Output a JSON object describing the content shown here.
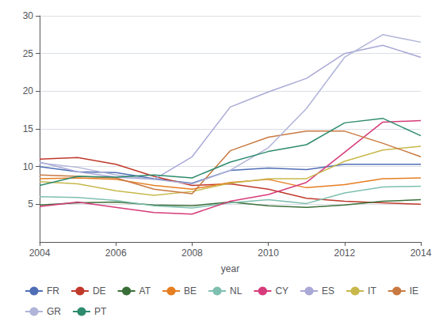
{
  "chart_data": {
    "type": "line",
    "xlabel": "year",
    "x": [
      2004,
      2005,
      2006,
      2007,
      2008,
      2009,
      2010,
      2011,
      2012,
      2013,
      2014
    ],
    "series": [
      {
        "name": "FR",
        "color": "#4f6eb5",
        "values": [
          10.0,
          9.3,
          9.2,
          8.4,
          7.8,
          9.5,
          9.8,
          9.6,
          10.3,
          10.3,
          10.3
        ]
      },
      {
        "name": "DE",
        "color": "#c0392b",
        "values": [
          11.0,
          11.2,
          10.3,
          8.7,
          7.5,
          7.7,
          7.0,
          5.8,
          5.4,
          5.2,
          5.0
        ]
      },
      {
        "name": "AT",
        "color": "#3a6e38",
        "values": [
          4.9,
          5.2,
          5.3,
          4.9,
          4.8,
          5.3,
          4.8,
          4.6,
          4.9,
          5.4,
          5.6
        ]
      },
      {
        "name": "BE",
        "color": "#e67e22",
        "values": [
          8.4,
          8.5,
          8.3,
          7.5,
          7.0,
          7.9,
          8.3,
          7.2,
          7.6,
          8.4,
          8.5
        ]
      },
      {
        "name": "NL",
        "color": "#7fbfb0",
        "values": [
          6.0,
          5.9,
          5.5,
          4.8,
          4.5,
          5.2,
          5.6,
          5.1,
          6.5,
          7.3,
          7.4
        ]
      },
      {
        "name": "CY",
        "color": "#d63b7a",
        "values": [
          4.7,
          5.3,
          4.6,
          3.9,
          3.7,
          5.4,
          6.3,
          7.9,
          11.9,
          15.9,
          16.1
        ]
      },
      {
        "name": "ES",
        "color": "#a9a8d6",
        "values": [
          10.6,
          9.3,
          8.6,
          8.3,
          11.3,
          17.9,
          19.9,
          21.7,
          25.0,
          26.1,
          24.5
        ]
      },
      {
        "name": "IT",
        "color": "#c8b84b",
        "values": [
          8.0,
          7.7,
          6.8,
          6.2,
          6.7,
          7.8,
          8.4,
          8.4,
          10.7,
          12.2,
          12.7
        ]
      },
      {
        "name": "IE",
        "color": "#c87941",
        "values": [
          8.9,
          8.7,
          8.5,
          7.0,
          6.4,
          12.1,
          13.9,
          14.7,
          14.7,
          13.1,
          11.3
        ]
      },
      {
        "name": "GR",
        "color": "#b0b4d8",
        "values": [
          10.5,
          9.9,
          8.9,
          8.3,
          7.7,
          9.5,
          12.5,
          17.7,
          24.5,
          27.5,
          26.5
        ]
      },
      {
        "name": "PT",
        "color": "#2e8b6e",
        "values": [
          7.5,
          8.7,
          8.6,
          8.9,
          8.5,
          10.6,
          12.0,
          12.9,
          15.8,
          16.4,
          14.1
        ]
      }
    ],
    "xlim": [
      2004,
      2014
    ],
    "xticks": [
      2004,
      2006,
      2008,
      2010,
      2012,
      2014
    ],
    "ylim": [
      0,
      30
    ],
    "yticks": [
      5,
      10,
      15,
      20,
      25,
      30
    ],
    "grid": true,
    "legend": "bottom"
  }
}
